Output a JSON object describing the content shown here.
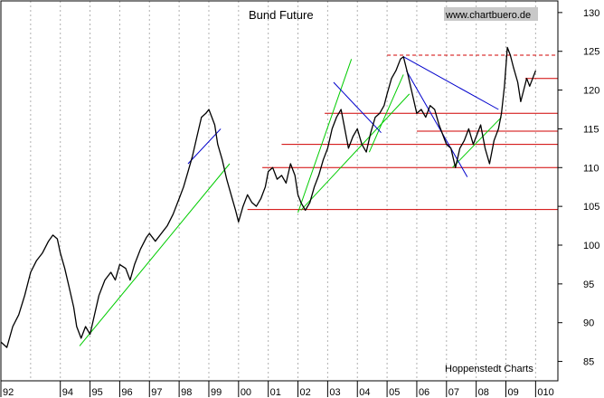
{
  "chart_data": {
    "type": "line",
    "title": "Bund Future",
    "watermark": "www.chartbuero.de",
    "credit": "Hoppenstedt Charts",
    "xlabel": "",
    "ylabel": "",
    "xlim": [
      1992.0,
      2010.75
    ],
    "ylim": [
      82.5,
      131.5
    ],
    "y_ticks": [
      85,
      90,
      95,
      100,
      105,
      110,
      115,
      120,
      125,
      130
    ],
    "x_ticks": [
      {
        "x": 1992.0,
        "label": "92"
      },
      {
        "x": 1994.0,
        "label": "94"
      },
      {
        "x": 1995.0,
        "label": "95"
      },
      {
        "x": 1996.0,
        "label": "96"
      },
      {
        "x": 1997.0,
        "label": "97"
      },
      {
        "x": 1998.0,
        "label": "98"
      },
      {
        "x": 1999.0,
        "label": "99"
      },
      {
        "x": 2000.0,
        "label": "00"
      },
      {
        "x": 2001.0,
        "label": "01"
      },
      {
        "x": 2002.0,
        "label": "02"
      },
      {
        "x": 2003.0,
        "label": "03"
      },
      {
        "x": 2004.0,
        "label": "04"
      },
      {
        "x": 2005.0,
        "label": "05"
      },
      {
        "x": 2006.0,
        "label": "06"
      },
      {
        "x": 2007.0,
        "label": "07"
      },
      {
        "x": 2008.0,
        "label": "08"
      },
      {
        "x": 2009.0,
        "label": "09"
      },
      {
        "x": 2010.0,
        "label": "010"
      }
    ],
    "grid_x": [
      1993.0,
      1994.0,
      1995.0,
      1996.0,
      1997.0,
      1998.0,
      1999.0,
      2000.0,
      2001.0,
      2002.0,
      2003.0,
      2004.0,
      2005.0,
      2006.0,
      2007.0,
      2008.0,
      2009.0,
      2010.0
    ],
    "series": [
      {
        "name": "Bund Future",
        "color": "#000000",
        "points": [
          [
            1992.0,
            87.5
          ],
          [
            1992.2,
            86.8
          ],
          [
            1992.4,
            89.5
          ],
          [
            1992.6,
            91.0
          ],
          [
            1992.8,
            93.5
          ],
          [
            1993.0,
            96.5
          ],
          [
            1993.2,
            98.0
          ],
          [
            1993.4,
            99.0
          ],
          [
            1993.6,
            100.5
          ],
          [
            1993.75,
            101.3
          ],
          [
            1993.9,
            100.8
          ],
          [
            1994.0,
            99.0
          ],
          [
            1994.15,
            97.0
          ],
          [
            1994.3,
            94.5
          ],
          [
            1994.45,
            92.0
          ],
          [
            1994.55,
            89.5
          ],
          [
            1994.7,
            88.0
          ],
          [
            1994.85,
            89.5
          ],
          [
            1995.0,
            88.5
          ],
          [
            1995.15,
            91.0
          ],
          [
            1995.3,
            93.5
          ],
          [
            1995.5,
            95.5
          ],
          [
            1995.7,
            96.5
          ],
          [
            1995.85,
            95.5
          ],
          [
            1996.0,
            97.5
          ],
          [
            1996.2,
            97.0
          ],
          [
            1996.35,
            95.5
          ],
          [
            1996.5,
            97.5
          ],
          [
            1996.7,
            99.5
          ],
          [
            1996.9,
            101.0
          ],
          [
            1997.0,
            101.5
          ],
          [
            1997.2,
            100.5
          ],
          [
            1997.4,
            101.5
          ],
          [
            1997.6,
            102.5
          ],
          [
            1997.8,
            104.0
          ],
          [
            1998.0,
            106.0
          ],
          [
            1998.15,
            107.5
          ],
          [
            1998.3,
            109.5
          ],
          [
            1998.45,
            111.5
          ],
          [
            1998.6,
            114.0
          ],
          [
            1998.75,
            116.5
          ],
          [
            1998.9,
            117.0
          ],
          [
            1999.0,
            117.5
          ],
          [
            1999.1,
            116.5
          ],
          [
            1999.2,
            115.5
          ],
          [
            1999.3,
            113.0
          ],
          [
            1999.45,
            111.0
          ],
          [
            1999.6,
            108.5
          ],
          [
            1999.75,
            106.5
          ],
          [
            1999.9,
            104.5
          ],
          [
            2000.0,
            103.0
          ],
          [
            2000.15,
            105.0
          ],
          [
            2000.3,
            106.5
          ],
          [
            2000.45,
            105.5
          ],
          [
            2000.6,
            105.0
          ],
          [
            2000.75,
            106.0
          ],
          [
            2000.9,
            107.5
          ],
          [
            2001.0,
            109.5
          ],
          [
            2001.15,
            110.0
          ],
          [
            2001.3,
            108.5
          ],
          [
            2001.45,
            109.0
          ],
          [
            2001.6,
            108.0
          ],
          [
            2001.75,
            110.5
          ],
          [
            2001.9,
            109.0
          ],
          [
            2002.0,
            106.5
          ],
          [
            2002.1,
            105.5
          ],
          [
            2002.25,
            104.5
          ],
          [
            2002.4,
            105.5
          ],
          [
            2002.55,
            107.5
          ],
          [
            2002.7,
            109.0
          ],
          [
            2002.85,
            111.0
          ],
          [
            2003.0,
            112.5
          ],
          [
            2003.15,
            115.0
          ],
          [
            2003.3,
            116.5
          ],
          [
            2003.45,
            117.5
          ],
          [
            2003.55,
            115.5
          ],
          [
            2003.7,
            112.5
          ],
          [
            2003.85,
            114.0
          ],
          [
            2004.0,
            115.0
          ],
          [
            2004.15,
            113.0
          ],
          [
            2004.3,
            112.0
          ],
          [
            2004.45,
            114.5
          ],
          [
            2004.6,
            116.5
          ],
          [
            2004.75,
            117.0
          ],
          [
            2004.9,
            118.0
          ],
          [
            2005.0,
            119.5
          ],
          [
            2005.15,
            121.5
          ],
          [
            2005.3,
            122.5
          ],
          [
            2005.45,
            124.0
          ],
          [
            2005.55,
            124.3
          ],
          [
            2005.7,
            122.0
          ],
          [
            2005.85,
            119.5
          ],
          [
            2006.0,
            117.0
          ],
          [
            2006.15,
            117.5
          ],
          [
            2006.3,
            116.5
          ],
          [
            2006.45,
            118.0
          ],
          [
            2006.6,
            117.5
          ],
          [
            2006.75,
            115.5
          ],
          [
            2006.9,
            114.0
          ],
          [
            2007.0,
            113.0
          ],
          [
            2007.15,
            112.5
          ],
          [
            2007.3,
            110.0
          ],
          [
            2007.45,
            112.5
          ],
          [
            2007.6,
            113.5
          ],
          [
            2007.75,
            115.0
          ],
          [
            2007.9,
            113.0
          ],
          [
            2008.0,
            114.0
          ],
          [
            2008.15,
            115.5
          ],
          [
            2008.3,
            112.5
          ],
          [
            2008.45,
            110.5
          ],
          [
            2008.6,
            113.5
          ],
          [
            2008.75,
            115.0
          ],
          [
            2008.85,
            117.0
          ],
          [
            2008.95,
            120.5
          ],
          [
            2009.05,
            125.5
          ],
          [
            2009.15,
            124.5
          ],
          [
            2009.25,
            123.0
          ],
          [
            2009.4,
            121.0
          ],
          [
            2009.5,
            118.5
          ],
          [
            2009.6,
            120.0
          ],
          [
            2009.7,
            121.5
          ],
          [
            2009.8,
            120.5
          ],
          [
            2009.9,
            121.5
          ],
          [
            2010.0,
            122.5
          ]
        ]
      }
    ],
    "horizontal_levels": [
      {
        "y": 124.5,
        "x_start": 2005.0,
        "x_end": 2010.75,
        "color": "#d00000",
        "style": "dashed"
      },
      {
        "y": 121.5,
        "x_start": 2009.65,
        "x_end": 2010.75,
        "color": "#d00000",
        "style": "solid"
      },
      {
        "y": 117.0,
        "x_start": 2002.9,
        "x_end": 2010.75,
        "color": "#d00000",
        "style": "solid"
      },
      {
        "y": 114.7,
        "x_start": 2006.0,
        "x_end": 2010.75,
        "color": "#d00000",
        "style": "solid"
      },
      {
        "y": 113.0,
        "x_start": 2001.45,
        "x_end": 2010.75,
        "color": "#d00000",
        "style": "solid"
      },
      {
        "y": 110.0,
        "x_start": 2000.8,
        "x_end": 2010.75,
        "color": "#d00000",
        "style": "solid"
      },
      {
        "y": 104.6,
        "x_start": 2000.3,
        "x_end": 2010.75,
        "color": "#d00000",
        "style": "solid"
      }
    ],
    "trend_lines": [
      {
        "from": [
          1994.65,
          87.0
        ],
        "to": [
          1999.7,
          110.5
        ],
        "color": "#00cc00"
      },
      {
        "from": [
          2002.0,
          104.2
        ],
        "to": [
          2003.8,
          124.0
        ],
        "color": "#00cc00"
      },
      {
        "from": [
          2002.1,
          104.5
        ],
        "to": [
          2005.75,
          119.5
        ],
        "color": "#00cc00"
      },
      {
        "from": [
          2004.4,
          112.0
        ],
        "to": [
          2005.55,
          122.0
        ],
        "color": "#00cc00"
      },
      {
        "from": [
          2007.2,
          110.0
        ],
        "to": [
          2008.85,
          116.5
        ],
        "color": "#00cc00"
      },
      {
        "from": [
          1998.3,
          110.5
        ],
        "to": [
          1999.4,
          115.0
        ],
        "color": "#0000cc"
      },
      {
        "from": [
          2003.2,
          121.0
        ],
        "to": [
          2004.8,
          114.5
        ],
        "color": "#0000cc"
      },
      {
        "from": [
          2005.55,
          124.3
        ],
        "to": [
          2008.75,
          117.5
        ],
        "color": "#0000cc"
      },
      {
        "from": [
          2005.65,
          122.5
        ],
        "to": [
          2007.7,
          108.8
        ],
        "color": "#0000cc"
      }
    ]
  }
}
